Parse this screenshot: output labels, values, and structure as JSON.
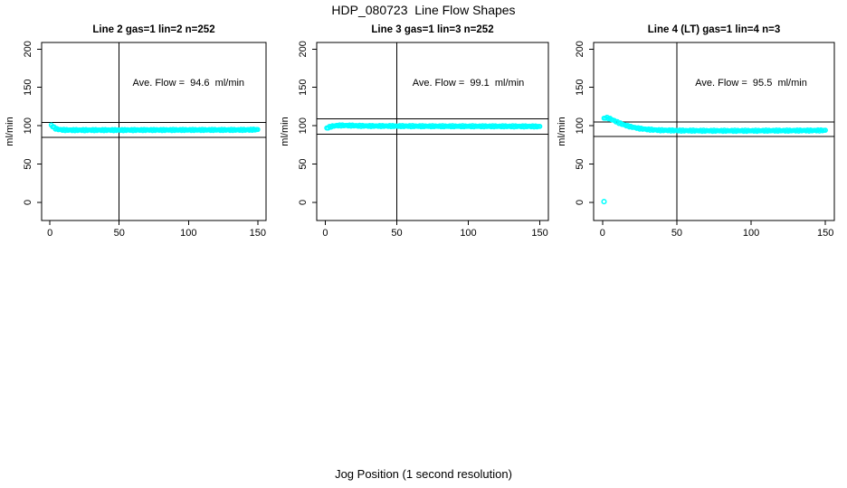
{
  "figure": {
    "title": "HDP_080723  Line Flow Shapes",
    "xlabel": "Jog Position (1 second resolution)",
    "ylabel": "ml/min",
    "background_color": "#ffffff",
    "point_color": "#00ffff",
    "line_color": "#000000",
    "text_color": "#000000"
  },
  "chart_data": [
    {
      "type": "scatter",
      "title": "Line 2 gas=1 lin=2 n=252",
      "annotation": "Ave. Flow =  94.6  ml/min",
      "ave_flow_ml_min": 94.6,
      "n": 252,
      "marker": "open-circle",
      "xlim": [
        0,
        150
      ],
      "ylim": [
        0,
        200
      ],
      "x_ticks": [
        0,
        50,
        100,
        150
      ],
      "y_ticks": [
        0,
        50,
        100,
        150,
        200
      ],
      "vline_x": 50,
      "ref_lines": [
        104.1,
        85.1
      ],
      "profile": [
        [
          1,
          100.5
        ],
        [
          2,
          99.2
        ],
        [
          3,
          97.6
        ],
        [
          4,
          96.4
        ],
        [
          6,
          95.2
        ],
        [
          9,
          94.6
        ],
        [
          15,
          94.3
        ],
        [
          30,
          94.3
        ],
        [
          60,
          94.4
        ],
        [
          100,
          94.5
        ],
        [
          140,
          94.6
        ],
        [
          150,
          94.9
        ]
      ],
      "outliers": []
    },
    {
      "type": "scatter",
      "title": "Line 3 gas=1 lin=3 n=252",
      "annotation": "Ave. Flow =  99.1  ml/min",
      "ave_flow_ml_min": 99.1,
      "n": 252,
      "marker": "open-circle",
      "xlim": [
        0,
        150
      ],
      "ylim": [
        0,
        200
      ],
      "x_ticks": [
        0,
        50,
        100,
        150
      ],
      "y_ticks": [
        0,
        50,
        100,
        150,
        200
      ],
      "vline_x": 50,
      "ref_lines": [
        109.0,
        89.2
      ],
      "profile": [
        [
          1,
          96.8
        ],
        [
          2,
          97.6
        ],
        [
          3,
          98.4
        ],
        [
          5,
          99.4
        ],
        [
          8,
          100.2
        ],
        [
          12,
          100.4
        ],
        [
          18,
          100.2
        ],
        [
          25,
          99.8
        ],
        [
          40,
          99.6
        ],
        [
          70,
          99.4
        ],
        [
          110,
          99.3
        ],
        [
          145,
          99.2
        ],
        [
          150,
          98.9
        ]
      ],
      "outliers": []
    },
    {
      "type": "scatter",
      "title": "Line 4 (LT) gas=1 lin=4 n=3",
      "annotation": "Ave. Flow =  95.5  ml/min",
      "ave_flow_ml_min": 95.5,
      "n": 3,
      "marker": "open-circle",
      "xlim": [
        0,
        150
      ],
      "ylim": [
        0,
        200
      ],
      "x_ticks": [
        0,
        50,
        100,
        150
      ],
      "y_ticks": [
        0,
        50,
        100,
        150,
        200
      ],
      "vline_x": 50,
      "ref_lines": [
        105.1,
        86.0
      ],
      "profile": [
        [
          1,
          109.5
        ],
        [
          2,
          110.3
        ],
        [
          3,
          110.4
        ],
        [
          5,
          109.2
        ],
        [
          7,
          107.4
        ],
        [
          10,
          104.6
        ],
        [
          13,
          102.2
        ],
        [
          16,
          100.2
        ],
        [
          20,
          98.2
        ],
        [
          25,
          96.4
        ],
        [
          30,
          95.2
        ],
        [
          38,
          94.2
        ],
        [
          50,
          93.7
        ],
        [
          70,
          93.5
        ],
        [
          100,
          93.5
        ],
        [
          130,
          93.7
        ],
        [
          150,
          93.9
        ]
      ],
      "outliers": [
        [
          1,
          1
        ]
      ]
    }
  ]
}
